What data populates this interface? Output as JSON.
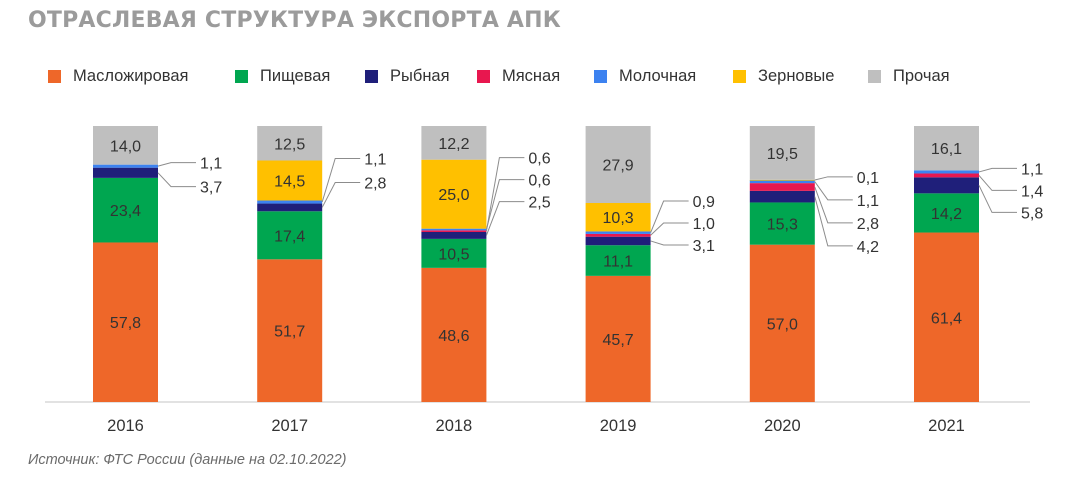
{
  "title": "ОТРАСЛЕВАЯ СТРУКТУРА ЭКСПОРТА АПК",
  "source": "Источник: ФТС России (данные на 02.10.2022)",
  "chart_data": {
    "type": "bar",
    "stacked": true,
    "categories": [
      "2016",
      "2017",
      "2018",
      "2019",
      "2020",
      "2021"
    ],
    "series": [
      {
        "name": "Масложировая",
        "color": "#ee6729",
        "values": [
          57.8,
          51.7,
          48.6,
          45.7,
          57.0,
          61.4
        ],
        "labels": [
          "57,8",
          "51,7",
          "48,6",
          "45,7",
          "57,0",
          "61,4"
        ]
      },
      {
        "name": "Пищевая",
        "color": "#00a650",
        "values": [
          23.4,
          17.4,
          10.5,
          11.1,
          15.3,
          14.2
        ],
        "labels": [
          "23,4",
          "17,4",
          "10,5",
          "11,1",
          "15,3",
          "14,2"
        ]
      },
      {
        "name": "Рыбная",
        "color": "#1f1f7a",
        "values": [
          3.7,
          2.8,
          2.5,
          3.1,
          4.2,
          5.8
        ],
        "labels": [
          "3,7",
          "2,8",
          "2,5",
          "3,1",
          "4,2",
          "5,8"
        ]
      },
      {
        "name": "Мясная",
        "color": "#e8174f",
        "values": [
          null,
          null,
          0.6,
          1.0,
          2.8,
          1.4
        ],
        "labels": [
          "",
          "",
          "0,6",
          "1,0",
          "2,8",
          "1,4"
        ]
      },
      {
        "name": "Молочная",
        "color": "#3c82f0",
        "values": [
          1.1,
          1.1,
          0.6,
          0.9,
          1.1,
          1.1
        ],
        "labels": [
          "1,1",
          "1,1",
          "0,6",
          "0,9",
          "1,1",
          "1,1"
        ]
      },
      {
        "name": "Зерновые",
        "color": "#ffc000",
        "values": [
          null,
          14.5,
          25.0,
          10.3,
          0.1,
          null
        ],
        "labels": [
          "",
          "14,5",
          "25,0",
          "10,3",
          "0,1",
          ""
        ]
      },
      {
        "name": "Прочая",
        "color": "#bfbfbf",
        "values": [
          14.0,
          12.5,
          12.2,
          27.9,
          19.5,
          16.1
        ],
        "labels": [
          "14,0",
          "12,5",
          "12,2",
          "27,9",
          "19,5",
          "16,1"
        ]
      }
    ],
    "ylim": [
      0,
      100
    ],
    "grid": false,
    "legend": "top"
  }
}
